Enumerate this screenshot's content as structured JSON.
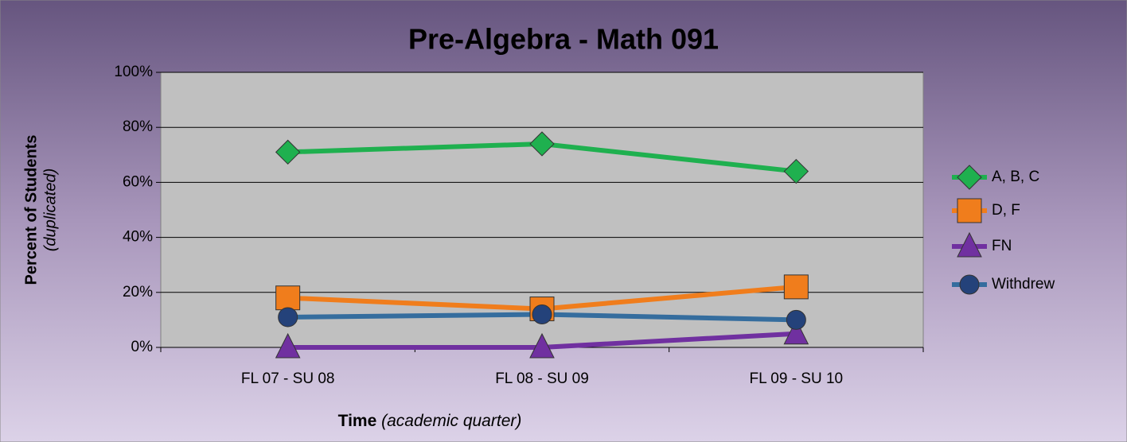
{
  "chart_data": {
    "type": "line",
    "title": "Pre-Algebra - Math 091",
    "y_label": "Percent of Students",
    "y_label_sub": "(duplicated)",
    "x_label": "Time",
    "x_label_sub": "(academic quarter)",
    "categories": [
      "FL 07 - SU 08",
      "FL 08 - SU 09",
      "FL 09 - SU 10"
    ],
    "series": [
      {
        "name": "A, B, C",
        "color": "#1fb04f",
        "marker": "diamond",
        "values": [
          71,
          74,
          64
        ]
      },
      {
        "name": "D, F",
        "color": "#f07d1c",
        "marker": "square",
        "values": [
          18,
          14,
          22
        ]
      },
      {
        "name": "FN",
        "color": "#7030a0",
        "marker": "triangle",
        "values": [
          0,
          0,
          5
        ]
      },
      {
        "name": "Withdrew",
        "color": "#356d9e",
        "marker": "circle",
        "values": [
          11,
          12,
          10
        ]
      }
    ],
    "ylim": [
      0,
      100
    ],
    "yticks": [
      {
        "value": 0,
        "label": "0%"
      },
      {
        "value": 20,
        "label": "20%"
      },
      {
        "value": 40,
        "label": "40%"
      },
      {
        "value": 60,
        "label": "60%"
      },
      {
        "value": 80,
        "label": "80%"
      },
      {
        "value": 100,
        "label": "100%"
      }
    ],
    "grid": true,
    "legend": "right"
  }
}
